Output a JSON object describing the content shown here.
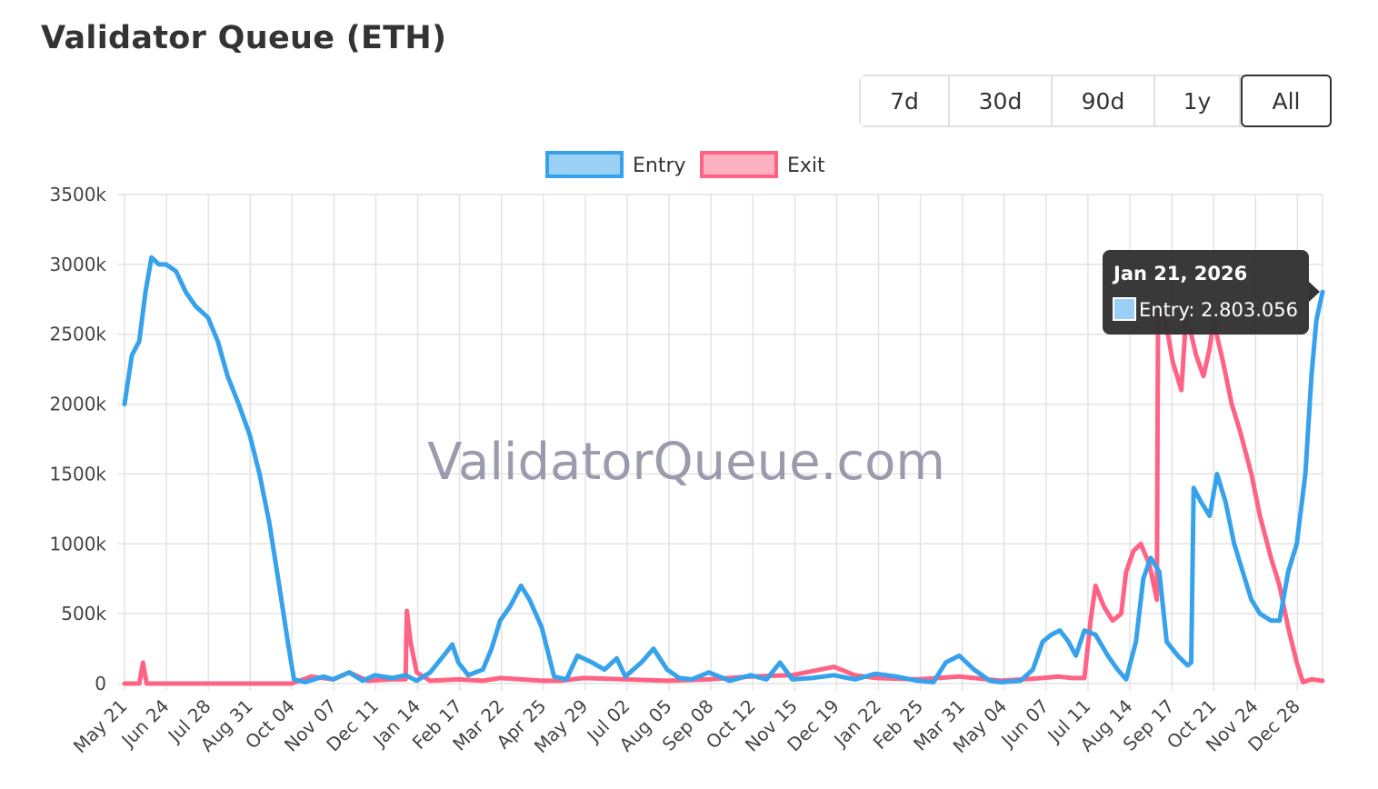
{
  "header": {
    "title": "Validator Queue (ETH)"
  },
  "range_buttons": [
    {
      "label": "7d",
      "active": false
    },
    {
      "label": "30d",
      "active": false
    },
    {
      "label": "90d",
      "active": false
    },
    {
      "label": "1y",
      "active": false
    },
    {
      "label": "All",
      "active": true
    }
  ],
  "watermark": "ValidatorQueue.com",
  "tooltip": {
    "title": "Jan 21, 2026",
    "label": "Entry: 2.803.056"
  },
  "colors": {
    "entry": "#36a2eb",
    "entry_fill": "#9ad0f5",
    "exit": "#ff6384",
    "exit_fill": "#ffb1c1"
  },
  "chart_data": {
    "type": "line",
    "start_date": "2023-05-21",
    "end_date": "2026-01-21",
    "x_tick_labels": [
      "May 21",
      "Jun 24",
      "Jul 28",
      "Aug 31",
      "Oct 04",
      "Nov 07",
      "Dec 11",
      "Jan 14",
      "Feb 17",
      "Mar 22",
      "Apr 25",
      "May 29",
      "Jul 02",
      "Aug 05",
      "Sep 08",
      "Oct 12",
      "Nov 15",
      "Dec 19",
      "Jan 22",
      "Feb 25",
      "Mar 31",
      "May 04",
      "Jun 07",
      "Jul 11",
      "Aug 14",
      "Sep 17",
      "Oct 21",
      "Nov 24",
      "Dec 28"
    ],
    "y_tick_labels": [
      "0",
      "500k",
      "1000k",
      "1500k",
      "2000k",
      "2500k",
      "3000k",
      "3500k"
    ],
    "ylim": [
      0,
      3500000
    ],
    "grid": true,
    "legend_position": "top",
    "series": [
      {
        "name": "Entry",
        "points": [
          [
            "2023-05-21",
            2000000
          ],
          [
            "2023-05-27",
            2350000
          ],
          [
            "2023-06-02",
            2450000
          ],
          [
            "2023-06-07",
            2800000
          ],
          [
            "2023-06-12",
            3050000
          ],
          [
            "2023-06-18",
            3000000
          ],
          [
            "2023-06-24",
            3000000
          ],
          [
            "2023-07-02",
            2950000
          ],
          [
            "2023-07-10",
            2800000
          ],
          [
            "2023-07-18",
            2700000
          ],
          [
            "2023-07-28",
            2620000
          ],
          [
            "2023-08-05",
            2450000
          ],
          [
            "2023-08-13",
            2200000
          ],
          [
            "2023-08-22",
            2000000
          ],
          [
            "2023-08-31",
            1780000
          ],
          [
            "2023-09-08",
            1500000
          ],
          [
            "2023-09-16",
            1150000
          ],
          [
            "2023-09-24",
            700000
          ],
          [
            "2023-10-01",
            300000
          ],
          [
            "2023-10-06",
            30000
          ],
          [
            "2023-10-15",
            10000
          ],
          [
            "2023-10-30",
            50000
          ],
          [
            "2023-11-07",
            30000
          ],
          [
            "2023-11-20",
            80000
          ],
          [
            "2023-12-01",
            20000
          ],
          [
            "2023-12-11",
            60000
          ],
          [
            "2023-12-25",
            40000
          ],
          [
            "2024-01-05",
            60000
          ],
          [
            "2024-01-14",
            20000
          ],
          [
            "2024-01-25",
            80000
          ],
          [
            "2024-02-05",
            200000
          ],
          [
            "2024-02-12",
            280000
          ],
          [
            "2024-02-17",
            150000
          ],
          [
            "2024-02-25",
            60000
          ],
          [
            "2024-03-08",
            100000
          ],
          [
            "2024-03-15",
            250000
          ],
          [
            "2024-03-22",
            450000
          ],
          [
            "2024-03-30",
            550000
          ],
          [
            "2024-04-08",
            700000
          ],
          [
            "2024-04-15",
            600000
          ],
          [
            "2024-04-25",
            400000
          ],
          [
            "2024-05-05",
            50000
          ],
          [
            "2024-05-15",
            30000
          ],
          [
            "2024-05-24",
            200000
          ],
          [
            "2024-06-05",
            150000
          ],
          [
            "2024-06-15",
            100000
          ],
          [
            "2024-06-25",
            180000
          ],
          [
            "2024-07-02",
            50000
          ],
          [
            "2024-07-15",
            150000
          ],
          [
            "2024-07-25",
            250000
          ],
          [
            "2024-08-05",
            100000
          ],
          [
            "2024-08-15",
            40000
          ],
          [
            "2024-08-25",
            30000
          ],
          [
            "2024-09-08",
            80000
          ],
          [
            "2024-09-25",
            20000
          ],
          [
            "2024-10-12",
            60000
          ],
          [
            "2024-10-25",
            30000
          ],
          [
            "2024-11-05",
            150000
          ],
          [
            "2024-11-15",
            30000
          ],
          [
            "2024-12-01",
            40000
          ],
          [
            "2024-12-19",
            60000
          ],
          [
            "2025-01-05",
            30000
          ],
          [
            "2025-01-22",
            70000
          ],
          [
            "2025-02-08",
            50000
          ],
          [
            "2025-02-25",
            20000
          ],
          [
            "2025-03-10",
            10000
          ],
          [
            "2025-03-20",
            150000
          ],
          [
            "2025-03-31",
            200000
          ],
          [
            "2025-04-12",
            100000
          ],
          [
            "2025-04-25",
            20000
          ],
          [
            "2025-05-04",
            10000
          ],
          [
            "2025-05-20",
            20000
          ],
          [
            "2025-05-30",
            100000
          ],
          [
            "2025-06-07",
            300000
          ],
          [
            "2025-06-14",
            350000
          ],
          [
            "2025-06-21",
            380000
          ],
          [
            "2025-06-28",
            300000
          ],
          [
            "2025-07-04",
            200000
          ],
          [
            "2025-07-11",
            380000
          ],
          [
            "2025-07-20",
            350000
          ],
          [
            "2025-07-30",
            200000
          ],
          [
            "2025-08-07",
            100000
          ],
          [
            "2025-08-14",
            30000
          ],
          [
            "2025-08-22",
            300000
          ],
          [
            "2025-08-28",
            750000
          ],
          [
            "2025-09-03",
            900000
          ],
          [
            "2025-09-10",
            800000
          ],
          [
            "2025-09-16",
            300000
          ],
          [
            "2025-09-25",
            200000
          ],
          [
            "2025-10-03",
            130000
          ],
          [
            "2025-10-06",
            150000
          ],
          [
            "2025-10-08",
            1400000
          ],
          [
            "2025-10-14",
            1300000
          ],
          [
            "2025-10-21",
            1200000
          ],
          [
            "2025-10-27",
            1500000
          ],
          [
            "2025-11-03",
            1300000
          ],
          [
            "2025-11-10",
            1000000
          ],
          [
            "2025-11-17",
            800000
          ],
          [
            "2025-11-24",
            600000
          ],
          [
            "2025-12-01",
            500000
          ],
          [
            "2025-12-10",
            450000
          ],
          [
            "2025-12-17",
            450000
          ],
          [
            "2025-12-24",
            800000
          ],
          [
            "2025-12-31",
            1000000
          ],
          [
            "2026-01-07",
            1500000
          ],
          [
            "2026-01-12",
            2200000
          ],
          [
            "2026-01-16",
            2600000
          ],
          [
            "2026-01-21",
            2803056
          ]
        ]
      },
      {
        "name": "Exit",
        "points": [
          [
            "2023-05-21",
            0
          ],
          [
            "2023-06-02",
            0
          ],
          [
            "2023-06-05",
            150000
          ],
          [
            "2023-06-08",
            0
          ],
          [
            "2023-08-31",
            0
          ],
          [
            "2023-10-04",
            0
          ],
          [
            "2023-10-20",
            50000
          ],
          [
            "2023-11-07",
            30000
          ],
          [
            "2023-11-20",
            80000
          ],
          [
            "2023-12-05",
            20000
          ],
          [
            "2023-12-25",
            30000
          ],
          [
            "2024-01-05",
            30000
          ],
          [
            "2024-01-06",
            520000
          ],
          [
            "2024-01-09",
            300000
          ],
          [
            "2024-01-14",
            80000
          ],
          [
            "2024-01-25",
            20000
          ],
          [
            "2024-02-17",
            30000
          ],
          [
            "2024-03-08",
            20000
          ],
          [
            "2024-03-22",
            40000
          ],
          [
            "2024-04-25",
            20000
          ],
          [
            "2024-05-10",
            20000
          ],
          [
            "2024-05-29",
            40000
          ],
          [
            "2024-07-02",
            30000
          ],
          [
            "2024-08-05",
            20000
          ],
          [
            "2024-09-08",
            30000
          ],
          [
            "2024-10-12",
            50000
          ],
          [
            "2024-11-15",
            60000
          ],
          [
            "2024-12-19",
            120000
          ],
          [
            "2025-01-05",
            60000
          ],
          [
            "2025-01-22",
            40000
          ],
          [
            "2025-02-25",
            30000
          ],
          [
            "2025-03-31",
            50000
          ],
          [
            "2025-05-04",
            20000
          ],
          [
            "2025-06-07",
            40000
          ],
          [
            "2025-06-20",
            50000
          ],
          [
            "2025-07-01",
            40000
          ],
          [
            "2025-07-11",
            40000
          ],
          [
            "2025-07-16",
            450000
          ],
          [
            "2025-07-20",
            700000
          ],
          [
            "2025-07-27",
            550000
          ],
          [
            "2025-08-03",
            450000
          ],
          [
            "2025-08-10",
            500000
          ],
          [
            "2025-08-14",
            800000
          ],
          [
            "2025-08-20",
            950000
          ],
          [
            "2025-08-26",
            1000000
          ],
          [
            "2025-09-02",
            850000
          ],
          [
            "2025-09-08",
            600000
          ],
          [
            "2025-09-09",
            2650000
          ],
          [
            "2025-09-15",
            2600000
          ],
          [
            "2025-09-21",
            2300000
          ],
          [
            "2025-09-28",
            2100000
          ],
          [
            "2025-10-02",
            2650000
          ],
          [
            "2025-10-10",
            2350000
          ],
          [
            "2025-10-16",
            2200000
          ],
          [
            "2025-10-21",
            2400000
          ],
          [
            "2025-10-24",
            2600000
          ],
          [
            "2025-11-01",
            2300000
          ],
          [
            "2025-11-08",
            2000000
          ],
          [
            "2025-11-15",
            1800000
          ],
          [
            "2025-11-24",
            1500000
          ],
          [
            "2025-12-01",
            1200000
          ],
          [
            "2025-12-10",
            900000
          ],
          [
            "2025-12-17",
            700000
          ],
          [
            "2025-12-24",
            400000
          ],
          [
            "2025-12-31",
            150000
          ],
          [
            "2026-01-05",
            10000
          ],
          [
            "2026-01-12",
            30000
          ],
          [
            "2026-01-21",
            20000
          ]
        ]
      }
    ]
  }
}
